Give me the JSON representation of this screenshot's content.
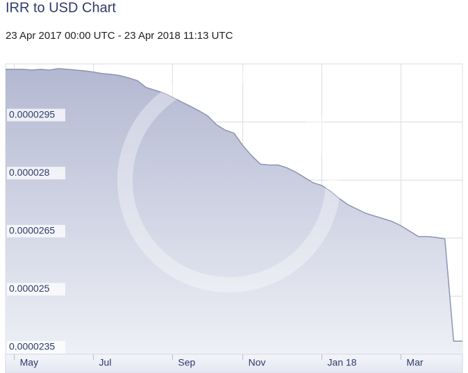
{
  "chart_data": {
    "type": "area",
    "title": "IRR to USD Chart",
    "subtitle": "23 Apr 2017 00:00 UTC - 23 Apr 2018 11:13 UTC",
    "categories": [
      null,
      "May",
      null,
      null,
      null,
      null,
      null,
      null,
      null,
      null,
      "Jul",
      null,
      null,
      null,
      null,
      null,
      null,
      null,
      null,
      "Sep",
      null,
      null,
      null,
      null,
      null,
      null,
      null,
      "Nov",
      null,
      null,
      null,
      null,
      null,
      null,
      null,
      null,
      "Jan 18",
      null,
      null,
      null,
      null,
      null,
      null,
      null,
      null,
      "Mar",
      null,
      null,
      null,
      null,
      null,
      null,
      null
    ],
    "values": [
      3.086e-05,
      3.086e-05,
      3.086e-05,
      3.084e-05,
      3.086e-05,
      3.084e-05,
      3.088e-05,
      3.086e-05,
      3.084e-05,
      3.082e-05,
      3.079e-05,
      3.075e-05,
      3.073e-05,
      3.07e-05,
      3.064e-05,
      3.057e-05,
      3.039e-05,
      3.032e-05,
      3.025e-05,
      3.014e-05,
      3.002e-05,
      2.991e-05,
      2.979e-05,
      2.966e-05,
      2.943e-05,
      2.929e-05,
      2.921e-05,
      2.889e-05,
      2.863e-05,
      2.841e-05,
      2.839e-05,
      2.839e-05,
      2.832e-05,
      2.821e-05,
      2.807e-05,
      2.793e-05,
      2.786e-05,
      2.771e-05,
      2.752e-05,
      2.736e-05,
      2.725e-05,
      2.714e-05,
      2.707e-05,
      2.7e-05,
      2.693e-05,
      2.682e-05,
      2.668e-05,
      2.654e-05,
      2.654e-05,
      2.652e-05,
      2.648e-05,
      2.384e-05,
      2.384e-05
    ],
    "color": "#8d93b5",
    "ylim": [
      2.35e-05,
      3.1e-05
    ],
    "yticks": [
      2.35e-05,
      2.5e-05,
      2.65e-05,
      2.8e-05,
      2.95e-05
    ],
    "grid": true
  }
}
